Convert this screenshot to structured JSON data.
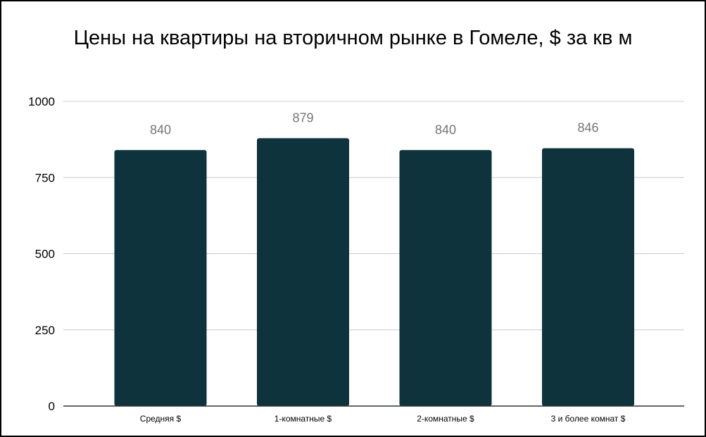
{
  "chart_data": {
    "type": "bar",
    "title": "Цены на квартиры на вторичном рынке в Гомеле, $ за кв м",
    "categories": [
      "Средняя $",
      "1-комнатные $",
      "2-комнатные $",
      "3 и более комнат $"
    ],
    "values": [
      840,
      879,
      840,
      846
    ],
    "data_labels": [
      "840",
      "879",
      "840",
      "846"
    ],
    "yticks": [
      0,
      250,
      500,
      750,
      1000
    ],
    "ylim": [
      0,
      1000
    ],
    "xlabel": "",
    "ylabel": "",
    "grid": true,
    "legend": "none",
    "colors": {
      "bar": "#0e333c",
      "gridline": "#cccccc",
      "axis": "#333333",
      "data_label": "#757575"
    }
  }
}
